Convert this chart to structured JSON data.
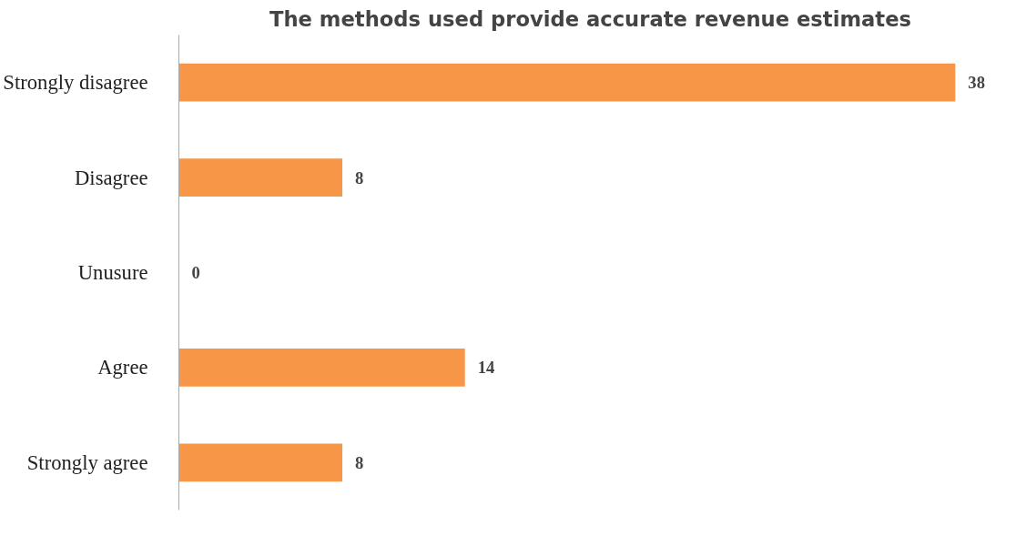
{
  "chart_data": {
    "type": "bar",
    "orientation": "horizontal",
    "title": "The methods used provide accurate revenue estimates",
    "categories": [
      "Strongly disagree",
      "Disagree",
      "Unusure",
      "Agree",
      "Strongly agree"
    ],
    "values": [
      38,
      8,
      0,
      14,
      8
    ],
    "color": "#f79646",
    "data_labels": true,
    "tick_labels": "y"
  }
}
